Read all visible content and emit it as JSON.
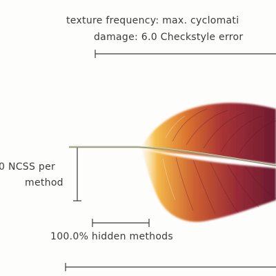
{
  "labels": {
    "texture_frequency_line": "texture frequency: max. cyclomati",
    "damage_line": "damage: 6.0 Checkstyle error",
    "ncss_line_1": "0 NCSS per",
    "ncss_line_2": "method",
    "hidden_methods": "100.0% hidden methods"
  },
  "colors": {
    "text": "#3a3a3a",
    "rule": "#3a3a3a",
    "vane_dark": "#7a1f33",
    "vane_mid": "#b8452f",
    "vane_light": "#f2b84a",
    "rachis": "#8a8a6a"
  }
}
